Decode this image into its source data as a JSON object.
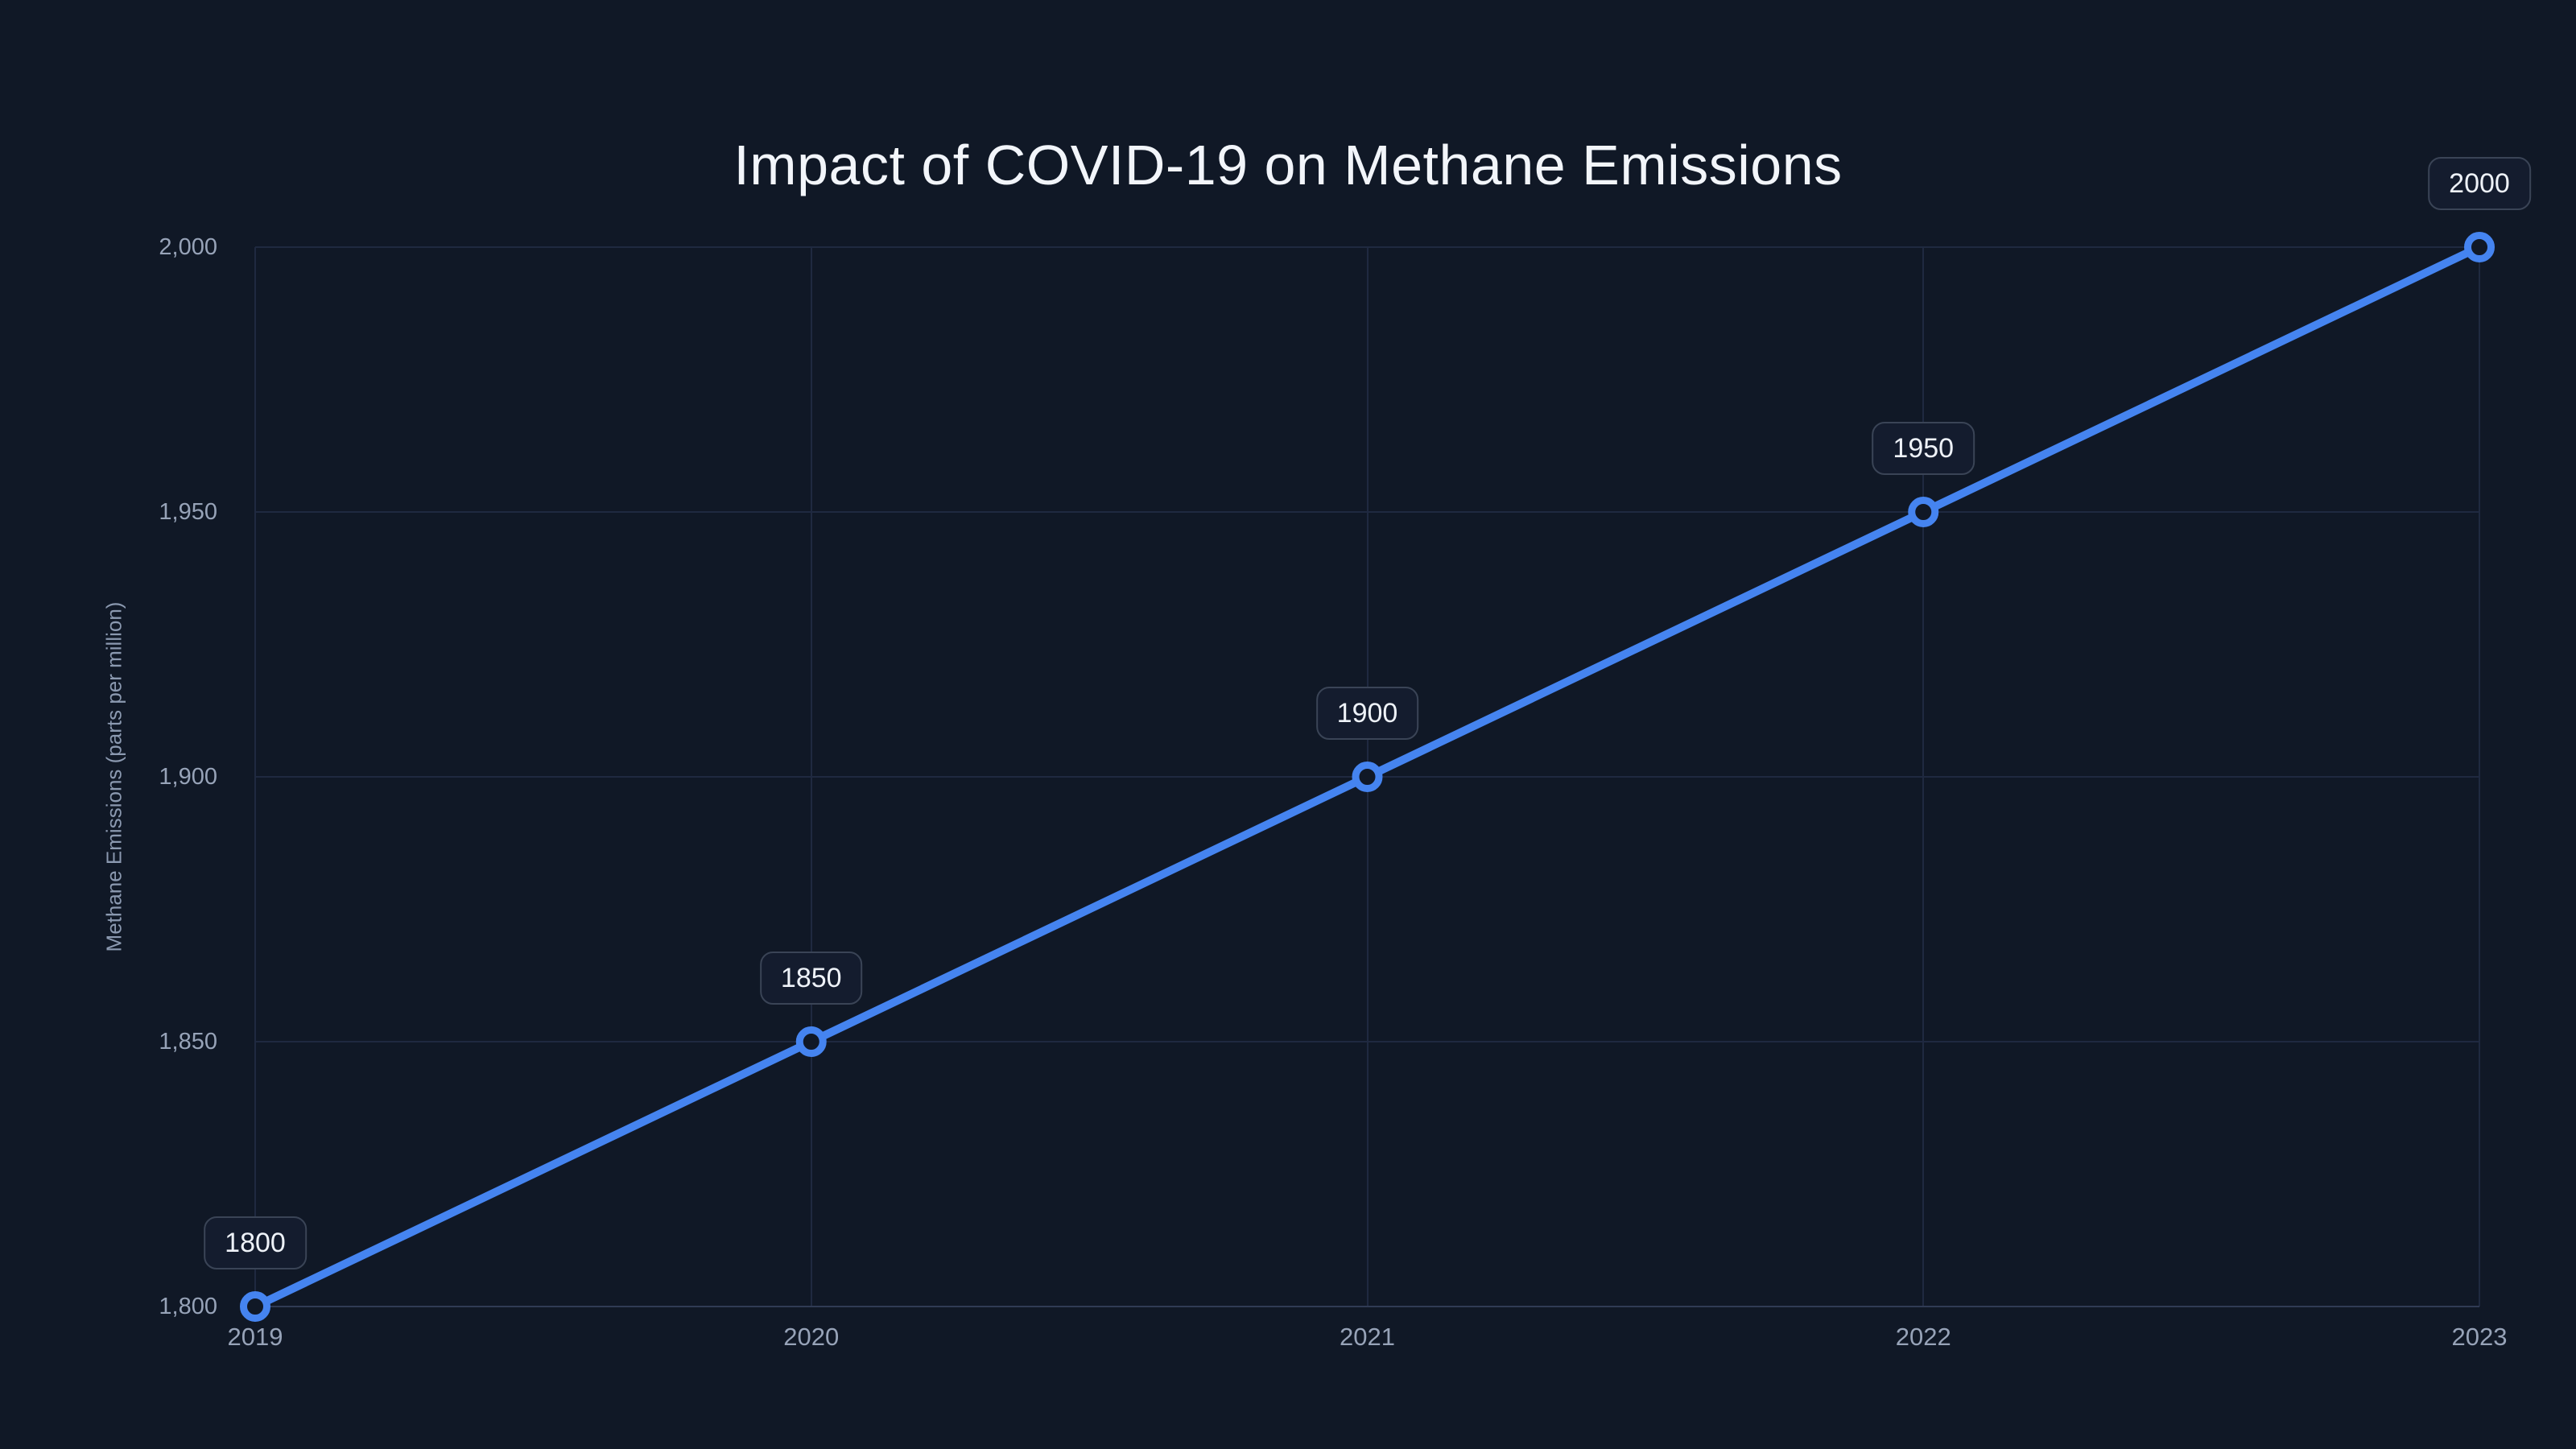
{
  "page": {
    "background": "#101826"
  },
  "chart_data": {
    "type": "line",
    "title": "Impact of COVID-19 on Methane Emissions",
    "xlabel": "",
    "ylabel": "Methane Emissions (parts per million)",
    "x": [
      2019,
      2020,
      2021,
      2022,
      2023
    ],
    "x_tick_labels": [
      "2019",
      "2020",
      "2021",
      "2022",
      "2023"
    ],
    "series": [
      {
        "name": "Methane Emissions",
        "values": [
          1800,
          1850,
          1900,
          1950,
          2000
        ]
      }
    ],
    "point_labels": [
      "1800",
      "1850",
      "1900",
      "1950",
      "2000"
    ],
    "y_ticks": [
      1800,
      1850,
      1900,
      1950,
      2000
    ],
    "y_tick_labels": [
      "1,800",
      "1,850",
      "1,900",
      "1,950",
      "2,000"
    ],
    "ylim": [
      1800,
      2000
    ],
    "grid": true,
    "legend_position": "none",
    "colors": {
      "background": "#101826",
      "line": "#4584f0",
      "marker_ring": "#4584f0",
      "marker_fill": "#101826",
      "grid": "#1f2940",
      "axis": "#303b54",
      "tick_text": "#97a3b8",
      "title_text": "#f2f5fa",
      "axis_title_text": "#8b99b0",
      "badge_bg": "#141c2e",
      "badge_border": "#3a4456",
      "badge_text": "#eef2f8"
    }
  }
}
